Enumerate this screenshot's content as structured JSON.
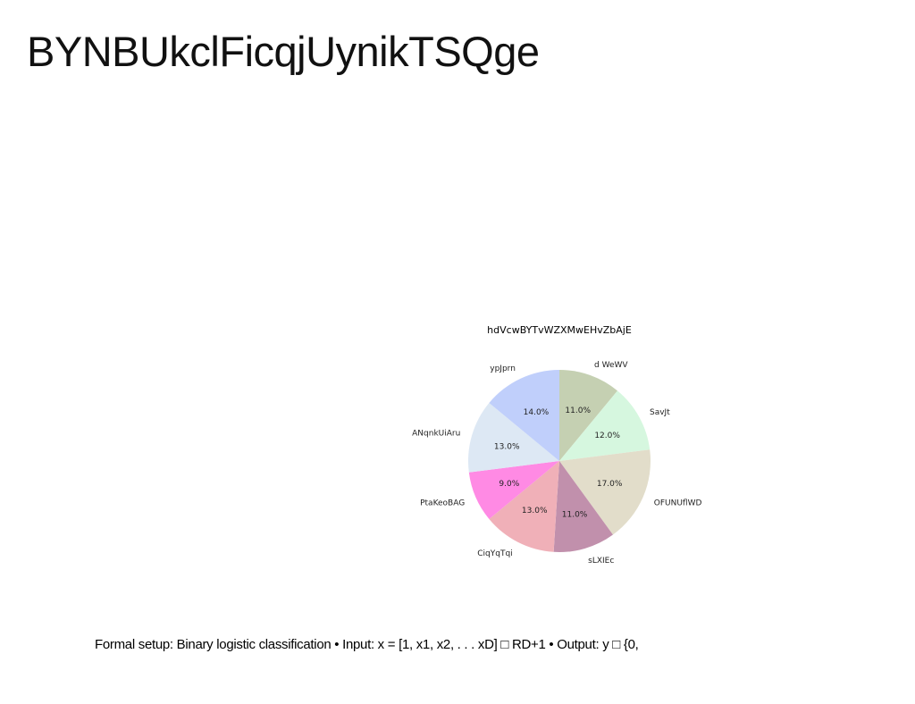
{
  "slide": {
    "title": "BYNBUkclFicqjUynikTSQge",
    "caption": "Formal setup: Binary logistic classification • Input: x = [1, x1, x2, . . . xD] □ RD+1 • Output: y □ {0,"
  },
  "chart_data": {
    "type": "pie",
    "title": "hdVcwBYTvWZXMwEHvZbAjE",
    "slices": [
      {
        "label": "d WeWV",
        "value": 11.0,
        "pct_label": "11.0%",
        "color": "#c5d0b2"
      },
      {
        "label": "SavJt",
        "value": 12.0,
        "pct_label": "12.0%",
        "color": "#d6f7df"
      },
      {
        "label": "OFUNUflWD",
        "value": 17.0,
        "pct_label": "17.0%",
        "color": "#e2ddca"
      },
      {
        "label": "sLXIEc",
        "value": 11.0,
        "pct_label": "11.0%",
        "color": "#c190ac"
      },
      {
        "label": "CiqYqTqi",
        "value": 13.0,
        "pct_label": "13.0%",
        "color": "#f0b0b8"
      },
      {
        "label": "PtaKeoBAG",
        "value": 9.0,
        "pct_label": "9.0%",
        "color": "#ff8ae4"
      },
      {
        "label": "ANqnkUiAru",
        "value": 13.0,
        "pct_label": "13.0%",
        "color": "#dde8f4"
      },
      {
        "label": "ypJprn",
        "value": 14.0,
        "pct_label": "14.0%",
        "color": "#c0cffb"
      }
    ],
    "start_angle_deg": 90,
    "direction": "clockwise",
    "legend": "none"
  }
}
